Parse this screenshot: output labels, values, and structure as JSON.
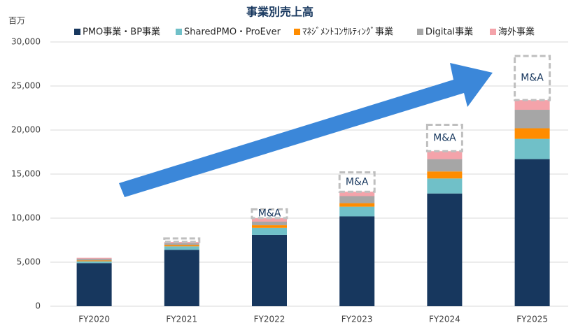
{
  "chart_data": {
    "type": "stacked_bar",
    "title": "事業別売上高",
    "unit_label": "百万",
    "categories": [
      "FY2020",
      "FY2021",
      "FY2022",
      "FY2023",
      "FY2024",
      "FY2025"
    ],
    "series": [
      {
        "name": "PMO事業・BP事業",
        "color": "#17375e",
        "values": [
          4900,
          6400,
          8100,
          10200,
          12800,
          16700
        ]
      },
      {
        "name": "SharedPMO・ProEver",
        "color": "#70c0c8",
        "values": [
          200,
          400,
          800,
          1100,
          1700,
          2300
        ]
      },
      {
        "name": "ﾏﾈｼﾞﾒﾝﾄｺﾝｻﾙﾃｨﾝｸﾞ事業",
        "color": "#ff8c00",
        "values": [
          100,
          150,
          300,
          400,
          800,
          1200
        ]
      },
      {
        "name": "Digital事業",
        "color": "#a6a6a6",
        "values": [
          200,
          200,
          400,
          800,
          1400,
          2100
        ]
      },
      {
        "name": "海外事業",
        "color": "#f4a3aa",
        "values": [
          100,
          150,
          400,
          500,
          900,
          1100
        ]
      }
    ],
    "ma": {
      "label": "M&A",
      "values": [
        null,
        400,
        1000,
        2200,
        3000,
        5000
      ]
    },
    "ylim": [
      0,
      30000
    ],
    "yticks": [
      0,
      {
        "value": 5000,
        "label": "5,000"
      },
      {
        "value": 10000,
        "label": "10,000"
      },
      {
        "value": 15000,
        "label": "15,000"
      },
      {
        "value": 20000,
        "label": "20,000"
      },
      {
        "value": 25000,
        "label": "25,000"
      },
      {
        "value": 30000,
        "label": "30,000"
      }
    ],
    "grid": true
  }
}
